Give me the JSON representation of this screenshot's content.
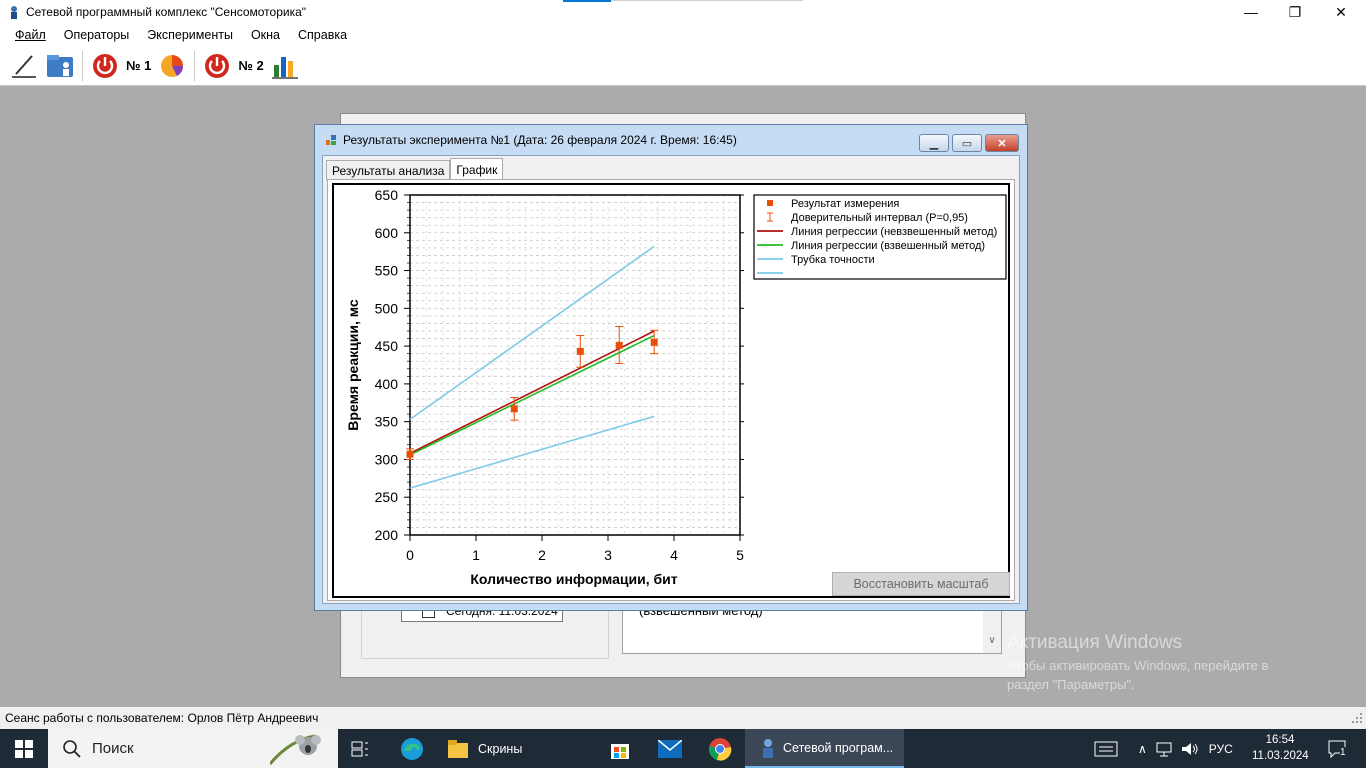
{
  "window": {
    "title": "Сетевой программный комплекс \"Сенсомоторика\"",
    "minimize_glyph": "—",
    "maximize_glyph": "❐",
    "close_glyph": "✕"
  },
  "menu": {
    "items": [
      {
        "label": "Файл"
      },
      {
        "label": "Операторы"
      },
      {
        "label": "Эксперименты"
      },
      {
        "label": "Окна"
      },
      {
        "label": "Справка"
      }
    ]
  },
  "toolbar": {
    "label_1": "№ 1",
    "label_2": "№ 2",
    "icons": [
      "pen-icon",
      "operators-folder-icon",
      "power-icon",
      "chart-pie-icon",
      "power-icon",
      "chart-bar-icon"
    ]
  },
  "background_window": {
    "date_text": "Сегодня: 11.03.2024",
    "text_area": "(взвешенный метод)"
  },
  "dialog": {
    "title": "Результаты эксперимента №1 (Дата: 26 февраля 2024 г. Время: 16:45)",
    "tabs": [
      {
        "label": "Результаты анализа",
        "active": false
      },
      {
        "label": "График",
        "active": true
      }
    ],
    "restore_button": "Восстановить масштаб"
  },
  "chart_data": {
    "type": "scatter",
    "xlabel": "Количество информации, бит",
    "ylabel": "Время реакции, мс",
    "xlim": [
      0,
      5
    ],
    "ylim": [
      200,
      650
    ],
    "xticks": [
      0,
      1,
      2,
      3,
      4,
      5
    ],
    "yticks": [
      200,
      250,
      300,
      350,
      400,
      450,
      500,
      550,
      600,
      650
    ],
    "grid": true,
    "legend_position": "top-right",
    "series": [
      {
        "name": "Результат измерения",
        "kind": "points",
        "color": "#e8500a",
        "x": [
          0,
          1.58,
          2.58,
          3.17,
          3.7
        ],
        "y": [
          307,
          367,
          443,
          451,
          455
        ]
      },
      {
        "name": "Доверительный интервал (P=0,95)",
        "kind": "errorbars",
        "color": "#e8500a",
        "x": [
          0,
          1.58,
          2.58,
          3.17,
          3.7
        ],
        "low": [
          300,
          352,
          422,
          427,
          440
        ],
        "high": [
          314,
          382,
          464,
          476,
          471
        ]
      },
      {
        "name": "Линия регрессии (невзвешенный метод)",
        "kind": "line",
        "color": "#b01010",
        "x": [
          0,
          3.7
        ],
        "y": [
          308,
          470
        ]
      },
      {
        "name": "Линия регрессии (взвешенный метод)",
        "kind": "line",
        "color": "#22bb22",
        "x": [
          0,
          3.7
        ],
        "y": [
          306,
          464
        ]
      },
      {
        "name": "Трубка точности",
        "kind": "line",
        "color": "#7ec8e8",
        "x": [
          0,
          3.7
        ],
        "y": [
          353,
          582
        ]
      },
      {
        "name": "",
        "kind": "line",
        "color": "#7ec8e8",
        "x": [
          0,
          3.7
        ],
        "y": [
          262,
          357
        ]
      }
    ]
  },
  "status": {
    "text": "Сеанс работы с пользователем: Орлов Пётр Андреевич"
  },
  "watermark": {
    "line1": "Активация Windows",
    "line2": "Чтобы активировать Windows, перейдите в",
    "line3": "раздел \"Параметры\"."
  },
  "taskbar": {
    "search_label": "Поиск",
    "apps": [
      {
        "label": "Скрины"
      },
      {
        "label": "Сетевой програм..."
      }
    ],
    "language": "РУС",
    "time": "16:54",
    "date": "11.03.2024",
    "notification_count": "1"
  }
}
